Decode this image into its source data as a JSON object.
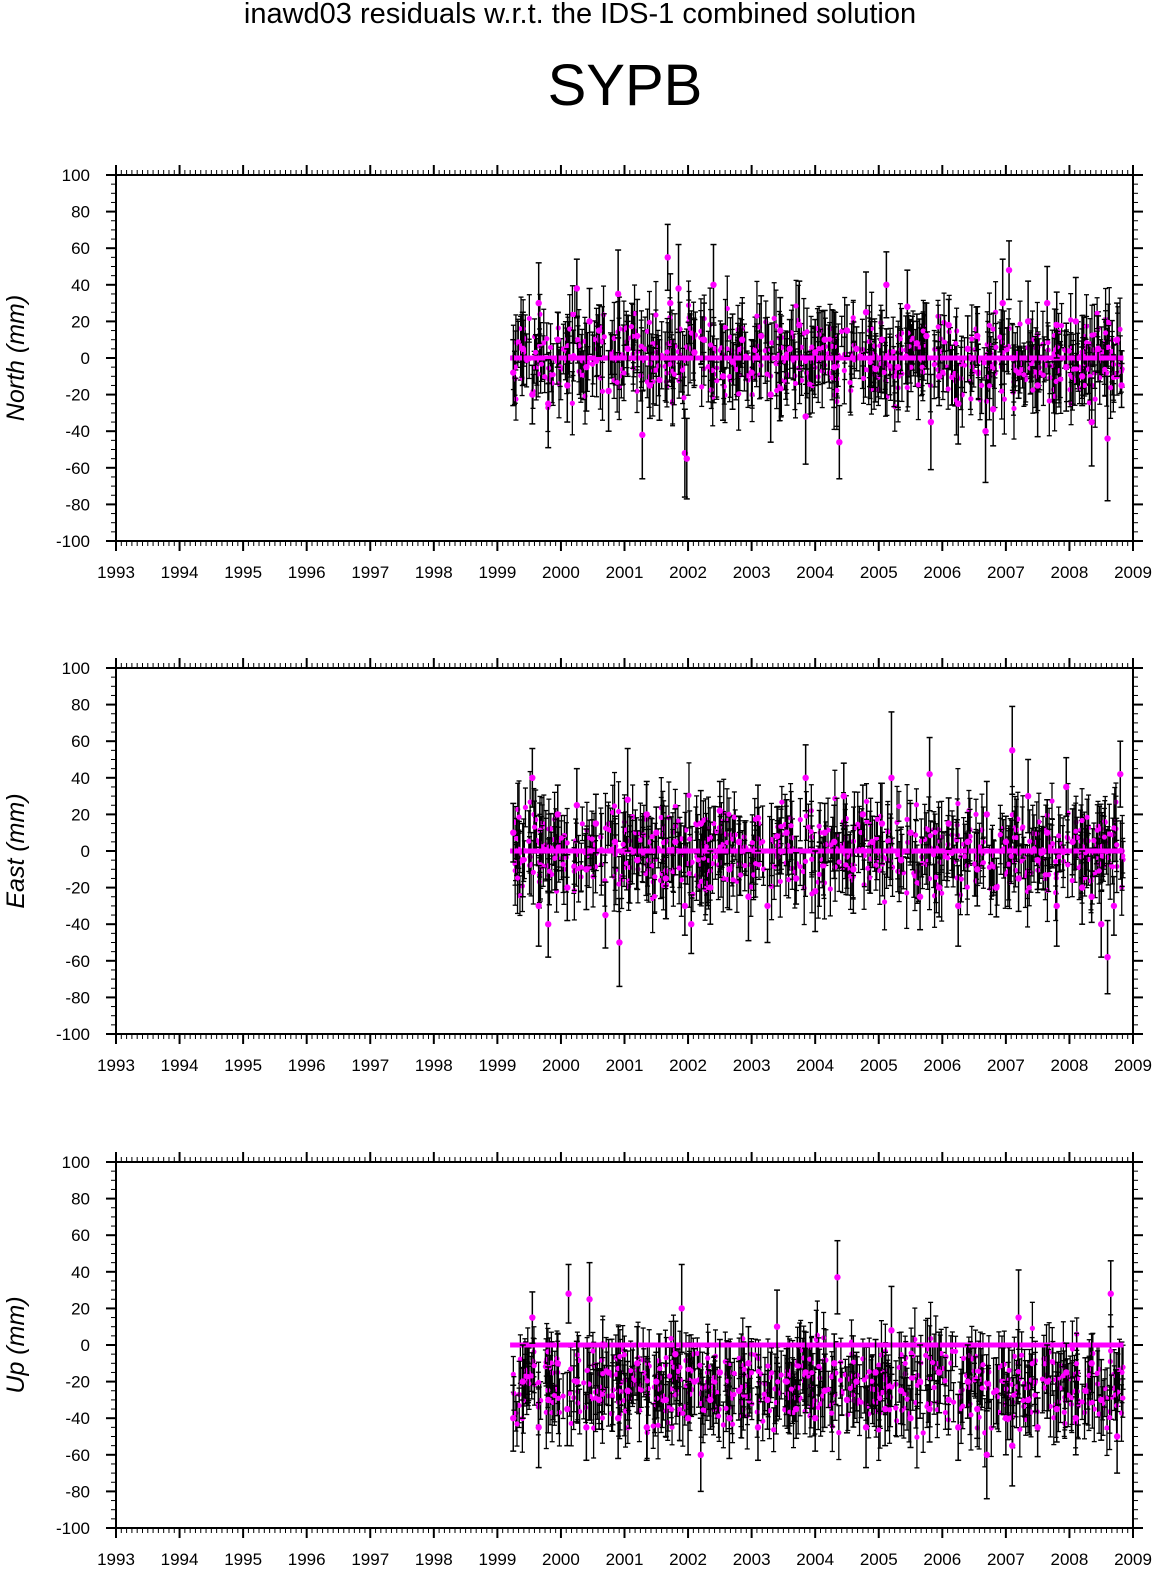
{
  "figure": {
    "title": "inawd03 residuals w.r.t. the IDS-1 combined solution",
    "station": "SYPB",
    "colors": {
      "point": "#ff00ff",
      "errorbar": "#000000",
      "zero_line": "#ff00ff",
      "axis": "#000000"
    }
  },
  "chart_data": [
    {
      "type": "scatter",
      "component": "North",
      "ylabel": "North (mm)",
      "xlim": [
        1993,
        2009
      ],
      "ylim": [
        -100,
        100
      ],
      "xticks": [
        "1993",
        "1994",
        "1995",
        "1996",
        "1997",
        "1998",
        "1999",
        "2000",
        "2001",
        "2002",
        "2003",
        "2004",
        "2005",
        "2006",
        "2007",
        "2008",
        "2009"
      ],
      "yticks": [
        "-100",
        "-80",
        "-60",
        "-40",
        "-20",
        "0",
        "20",
        "40",
        "60",
        "80",
        "100"
      ],
      "grid": false,
      "zero_line": {
        "y": 0,
        "x_start": 1999.2,
        "x_end": 2008.85
      },
      "series": [
        {
          "x": [
            1999.25,
            1999.4,
            1999.55,
            1999.65,
            1999.8,
            1999.95,
            2000.1,
            2000.25,
            2000.4,
            2000.45,
            2000.6,
            2000.75,
            2000.9,
            2001.05,
            2001.2,
            2001.28,
            2001.4,
            2001.55,
            2001.68,
            2001.72,
            2001.85,
            2001.95,
            2001.98,
            2002.1,
            2002.25,
            2002.4,
            2002.55,
            2002.7,
            2002.85,
            2003.0,
            2003.15,
            2003.3,
            2003.45,
            2003.6,
            2003.75,
            2003.85,
            2004.0,
            2004.15,
            2004.3,
            2004.38,
            2004.5,
            2004.65,
            2004.8,
            2004.95,
            2005.05,
            2005.12,
            2005.3,
            2005.45,
            2005.6,
            2005.75,
            2005.82,
            2005.95,
            2006.1,
            2006.25,
            2006.4,
            2006.55,
            2006.68,
            2006.8,
            2006.95,
            2007.05,
            2007.2,
            2007.35,
            2007.5,
            2007.65,
            2007.8,
            2007.95,
            2008.1,
            2008.2,
            2008.35,
            2008.45,
            2008.6,
            2008.75,
            2008.82
          ],
          "y": [
            -8,
            5,
            -20,
            30,
            -25,
            10,
            -15,
            38,
            -5,
            20,
            15,
            -18,
            35,
            5,
            12,
            -42,
            -15,
            -12,
            55,
            30,
            38,
            -52,
            -55,
            3,
            10,
            40,
            -10,
            -2,
            10,
            -8,
            12,
            -20,
            15,
            5,
            18,
            -32,
            3,
            10,
            -5,
            -46,
            15,
            5,
            25,
            -6,
            10,
            40,
            -5,
            28,
            8,
            12,
            -35,
            -10,
            18,
            -25,
            5,
            12,
            -40,
            -28,
            30,
            48,
            -8,
            20,
            -15,
            30,
            18,
            -5,
            20,
            -10,
            -35,
            5,
            -44,
            10,
            -15
          ],
          "err": [
            18,
            20,
            16,
            22,
            24,
            15,
            20,
            16,
            24,
            18,
            14,
            22,
            24,
            15,
            20,
            24,
            18,
            22,
            18,
            16,
            24,
            24,
            22,
            18,
            20,
            22,
            24,
            26,
            20,
            18,
            22,
            26,
            18,
            16,
            24,
            26,
            18,
            16,
            22,
            20,
            14,
            12,
            22,
            18,
            16,
            18,
            22,
            20,
            16,
            18,
            26,
            16,
            14,
            22,
            18,
            16,
            28,
            20,
            24,
            16,
            14,
            22,
            28,
            20,
            18,
            24,
            24,
            16,
            24,
            18,
            34,
            20,
            12
          ]
        }
      ]
    },
    {
      "type": "scatter",
      "component": "East",
      "ylabel": "East (mm)",
      "xlim": [
        1993,
        2009
      ],
      "ylim": [
        -100,
        100
      ],
      "xticks": [
        "1993",
        "1994",
        "1995",
        "1996",
        "1997",
        "1998",
        "1999",
        "2000",
        "2001",
        "2002",
        "2003",
        "2004",
        "2005",
        "2006",
        "2007",
        "2008",
        "2009"
      ],
      "yticks": [
        "-100",
        "-80",
        "-60",
        "-40",
        "-20",
        "0",
        "20",
        "40",
        "60",
        "80",
        "100"
      ],
      "grid": false,
      "zero_line": {
        "y": 0,
        "x_start": 1999.2,
        "x_end": 2008.85
      },
      "series": [
        {
          "x": [
            1999.25,
            1999.4,
            1999.55,
            1999.65,
            1999.8,
            1999.95,
            2000.1,
            2000.25,
            2000.4,
            2000.55,
            2000.7,
            2000.85,
            2000.92,
            2001.05,
            2001.2,
            2001.35,
            2001.5,
            2001.65,
            2001.8,
            2001.95,
            2002.05,
            2002.2,
            2002.35,
            2002.5,
            2002.65,
            2002.8,
            2002.95,
            2003.1,
            2003.25,
            2003.4,
            2003.55,
            2003.7,
            2003.85,
            2004.0,
            2004.15,
            2004.3,
            2004.45,
            2004.6,
            2004.75,
            2004.9,
            2005.05,
            2005.2,
            2005.35,
            2005.5,
            2005.65,
            2005.8,
            2005.95,
            2006.1,
            2006.25,
            2006.4,
            2006.55,
            2006.7,
            2006.85,
            2007.0,
            2007.1,
            2007.2,
            2007.35,
            2007.5,
            2007.65,
            2007.8,
            2007.95,
            2008.05,
            2008.2,
            2008.35,
            2008.5,
            2008.6,
            2008.7,
            2008.8
          ],
          "y": [
            10,
            -5,
            40,
            -30,
            -40,
            20,
            -20,
            25,
            -10,
            15,
            -35,
            5,
            -50,
            28,
            -5,
            20,
            10,
            -15,
            5,
            -30,
            -40,
            15,
            -20,
            22,
            -10,
            5,
            -25,
            18,
            -30,
            8,
            10,
            -15,
            40,
            -22,
            10,
            5,
            30,
            -10,
            20,
            5,
            15,
            40,
            -5,
            10,
            -25,
            42,
            -20,
            15,
            -30,
            5,
            -10,
            20,
            -20,
            5,
            55,
            -15,
            30,
            -5,
            10,
            -30,
            35,
            5,
            -20,
            -25,
            -40,
            -58,
            -30,
            42
          ],
          "err": [
            16,
            20,
            16,
            22,
            18,
            16,
            18,
            20,
            22,
            16,
            18,
            14,
            24,
            28,
            16,
            18,
            14,
            22,
            18,
            16,
            16,
            18,
            20,
            16,
            22,
            14,
            24,
            18,
            20,
            16,
            18,
            14,
            18,
            22,
            16,
            20,
            18,
            24,
            16,
            14,
            22,
            36,
            18,
            16,
            18,
            20,
            16,
            14,
            22,
            16,
            20,
            18,
            16,
            14,
            24,
            18,
            20,
            16,
            18,
            22,
            16,
            18,
            20,
            14,
            18,
            20,
            16,
            18
          ]
        }
      ]
    },
    {
      "type": "scatter",
      "component": "Up",
      "ylabel": "Up (mm)",
      "xlim": [
        1993,
        2009
      ],
      "ylim": [
        -100,
        100
      ],
      "xticks": [
        "1993",
        "1994",
        "1995",
        "1996",
        "1997",
        "1998",
        "1999",
        "2000",
        "2001",
        "2002",
        "2003",
        "2004",
        "2005",
        "2006",
        "2007",
        "2008",
        "2009"
      ],
      "yticks": [
        "-100",
        "-80",
        "-60",
        "-40",
        "-20",
        "0",
        "20",
        "40",
        "60",
        "80",
        "100"
      ],
      "grid": false,
      "zero_line": {
        "y": 0,
        "x_start": 1999.2,
        "x_end": 2008.85
      },
      "series": [
        {
          "x": [
            1999.25,
            1999.4,
            1999.55,
            1999.65,
            1999.8,
            1999.95,
            2000.1,
            2000.12,
            2000.25,
            2000.4,
            2000.45,
            2000.6,
            2000.75,
            2000.9,
            2001.05,
            2001.2,
            2001.35,
            2001.5,
            2001.65,
            2001.8,
            2001.9,
            2002.0,
            2002.1,
            2002.2,
            2002.35,
            2002.5,
            2002.65,
            2002.8,
            2002.95,
            2003.1,
            2003.25,
            2003.4,
            2003.55,
            2003.7,
            2003.85,
            2004.0,
            2004.15,
            2004.3,
            2004.35,
            2004.5,
            2004.65,
            2004.8,
            2004.95,
            2005.1,
            2005.2,
            2005.35,
            2005.5,
            2005.65,
            2005.8,
            2005.95,
            2006.1,
            2006.25,
            2006.4,
            2006.55,
            2006.7,
            2006.85,
            2007.0,
            2007.1,
            2007.2,
            2007.35,
            2007.5,
            2007.65,
            2007.8,
            2007.95,
            2008.1,
            2008.25,
            2008.35,
            2008.5,
            2008.65,
            2008.75
          ],
          "y": [
            -40,
            -20,
            15,
            -45,
            -30,
            -10,
            -35,
            28,
            -20,
            -45,
            25,
            -30,
            -15,
            -40,
            -25,
            -10,
            -45,
            -20,
            -30,
            -5,
            20,
            -40,
            -20,
            -60,
            -30,
            -15,
            -40,
            -25,
            -10,
            -45,
            -30,
            10,
            -20,
            -35,
            -15,
            -40,
            -25,
            -10,
            37,
            -30,
            -20,
            -45,
            -15,
            -35,
            8,
            -25,
            -40,
            -20,
            -35,
            -15,
            -30,
            -45,
            -20,
            -35,
            -60,
            -25,
            -40,
            -55,
            15,
            -30,
            -45,
            -20,
            -35,
            -15,
            -40,
            -25,
            -10,
            -30,
            28,
            -50
          ],
          "err": [
            18,
            20,
            14,
            22,
            18,
            16,
            20,
            16,
            22,
            18,
            20,
            16,
            18,
            22,
            16,
            20,
            18,
            16,
            20,
            18,
            24,
            20,
            18,
            20,
            16,
            18,
            22,
            16,
            20,
            18,
            16,
            20,
            18,
            16,
            22,
            18,
            20,
            16,
            20,
            18,
            16,
            22,
            18,
            20,
            24,
            18,
            16,
            20,
            18,
            22,
            16,
            18,
            20,
            16,
            24,
            18,
            20,
            22,
            26,
            18,
            16,
            20,
            18,
            16,
            20,
            18,
            16,
            22,
            18,
            20
          ]
        }
      ]
    }
  ]
}
